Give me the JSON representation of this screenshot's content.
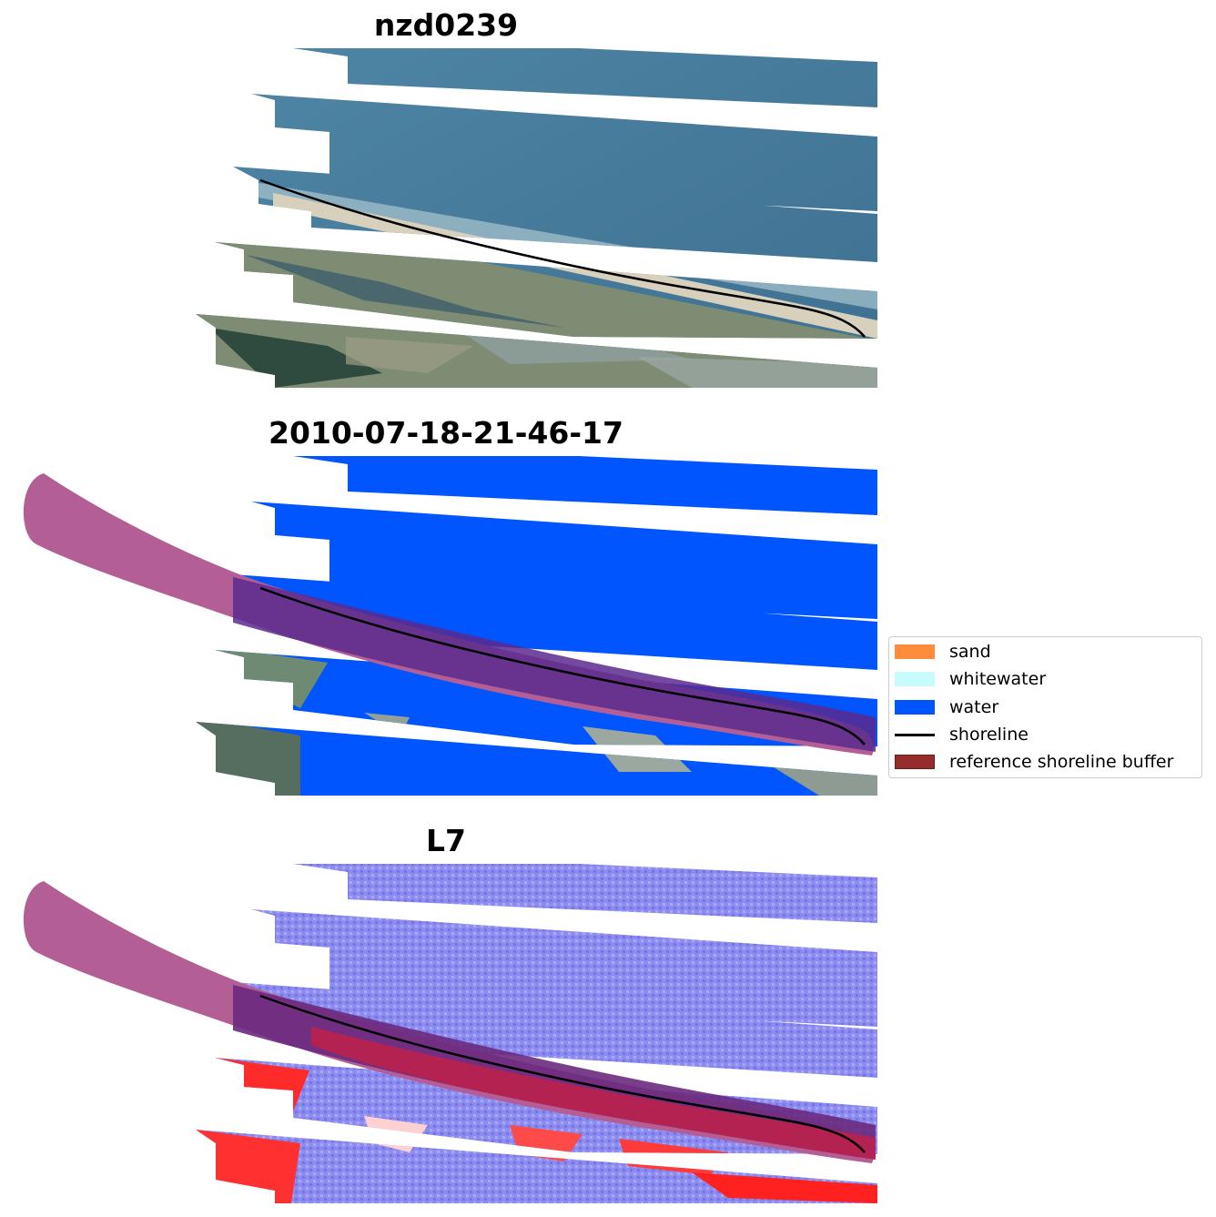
{
  "titles": {
    "panel1": "nzd0239",
    "panel2": "2010-07-18-21-46-17",
    "panel3": "L7"
  },
  "legend": {
    "items": [
      {
        "label": "sand",
        "color": "#ff8c3a",
        "kind": "patch"
      },
      {
        "label": "whitewater",
        "color": "#c8fbfb",
        "kind": "patch"
      },
      {
        "label": "water",
        "color": "#0055ff",
        "kind": "patch"
      },
      {
        "label": "shoreline",
        "color": "#000000",
        "kind": "line"
      },
      {
        "label": "reference shoreline buffer",
        "color": "#962d2d",
        "kind": "patch"
      }
    ]
  },
  "colors": {
    "ocean_rgb": "#4a7c9e",
    "land_rgb": "#7c8a6e",
    "beach": "#d8d2c0",
    "water_class": "#0055ff",
    "buffer": "#b35f95",
    "buffer_overlap": "#5a2a8e",
    "index_water": "#8c8cf0",
    "index_land": "#ff2020",
    "shoreline": "#000000"
  }
}
